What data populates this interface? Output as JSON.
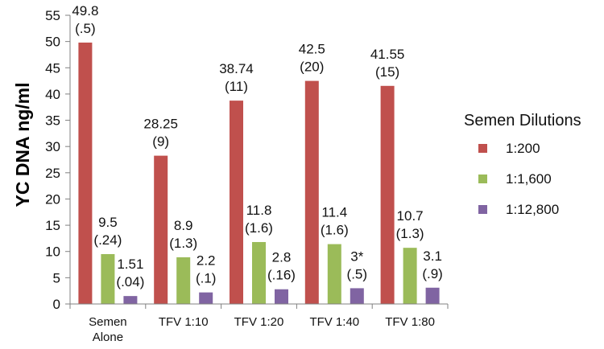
{
  "chart_data": {
    "type": "bar",
    "ylabel": "YC DNA ng/ml",
    "ylim": [
      0,
      55
    ],
    "yticks": [
      0,
      5,
      10,
      15,
      20,
      25,
      30,
      35,
      40,
      45,
      50,
      55
    ],
    "categories": [
      [
        "Semen",
        "Alone"
      ],
      [
        "TFV 1:10"
      ],
      [
        "TFV 1:20"
      ],
      [
        "TFV 1:40"
      ],
      [
        "TFV 1:80"
      ]
    ],
    "legend_title": "Semen Dilutions",
    "legend_position": "right",
    "grid": false,
    "series": [
      {
        "name": "1:200",
        "color": "#c0504d",
        "values": [
          49.8,
          28.25,
          38.74,
          42.5,
          41.55
        ],
        "labels": [
          [
            "49.8",
            "(.5)"
          ],
          [
            "28.25",
            "(9)"
          ],
          [
            "38.74",
            "(11)"
          ],
          [
            "42.5",
            "(20)"
          ],
          [
            "41.55",
            "(15)"
          ]
        ]
      },
      {
        "name": "1:1,600",
        "color": "#9bbb59",
        "values": [
          9.5,
          8.9,
          11.8,
          11.4,
          10.7
        ],
        "labels": [
          [
            "9.5",
            "(.24)"
          ],
          [
            "8.9",
            "(1.3)"
          ],
          [
            "11.8",
            "(1.6)"
          ],
          [
            "11.4",
            "(1.6)"
          ],
          [
            "10.7",
            "(1.3)"
          ]
        ]
      },
      {
        "name": "1:12,800",
        "color": "#8064a2",
        "values": [
          1.51,
          2.2,
          2.8,
          3.0,
          3.1
        ],
        "labels": [
          [
            "1.51",
            "(.04)"
          ],
          [
            "2.2",
            "(.1)"
          ],
          [
            "2.8",
            "(.16)"
          ],
          [
            "3*",
            "(.5)"
          ],
          [
            "3.1",
            "(.9)"
          ]
        ]
      }
    ]
  }
}
